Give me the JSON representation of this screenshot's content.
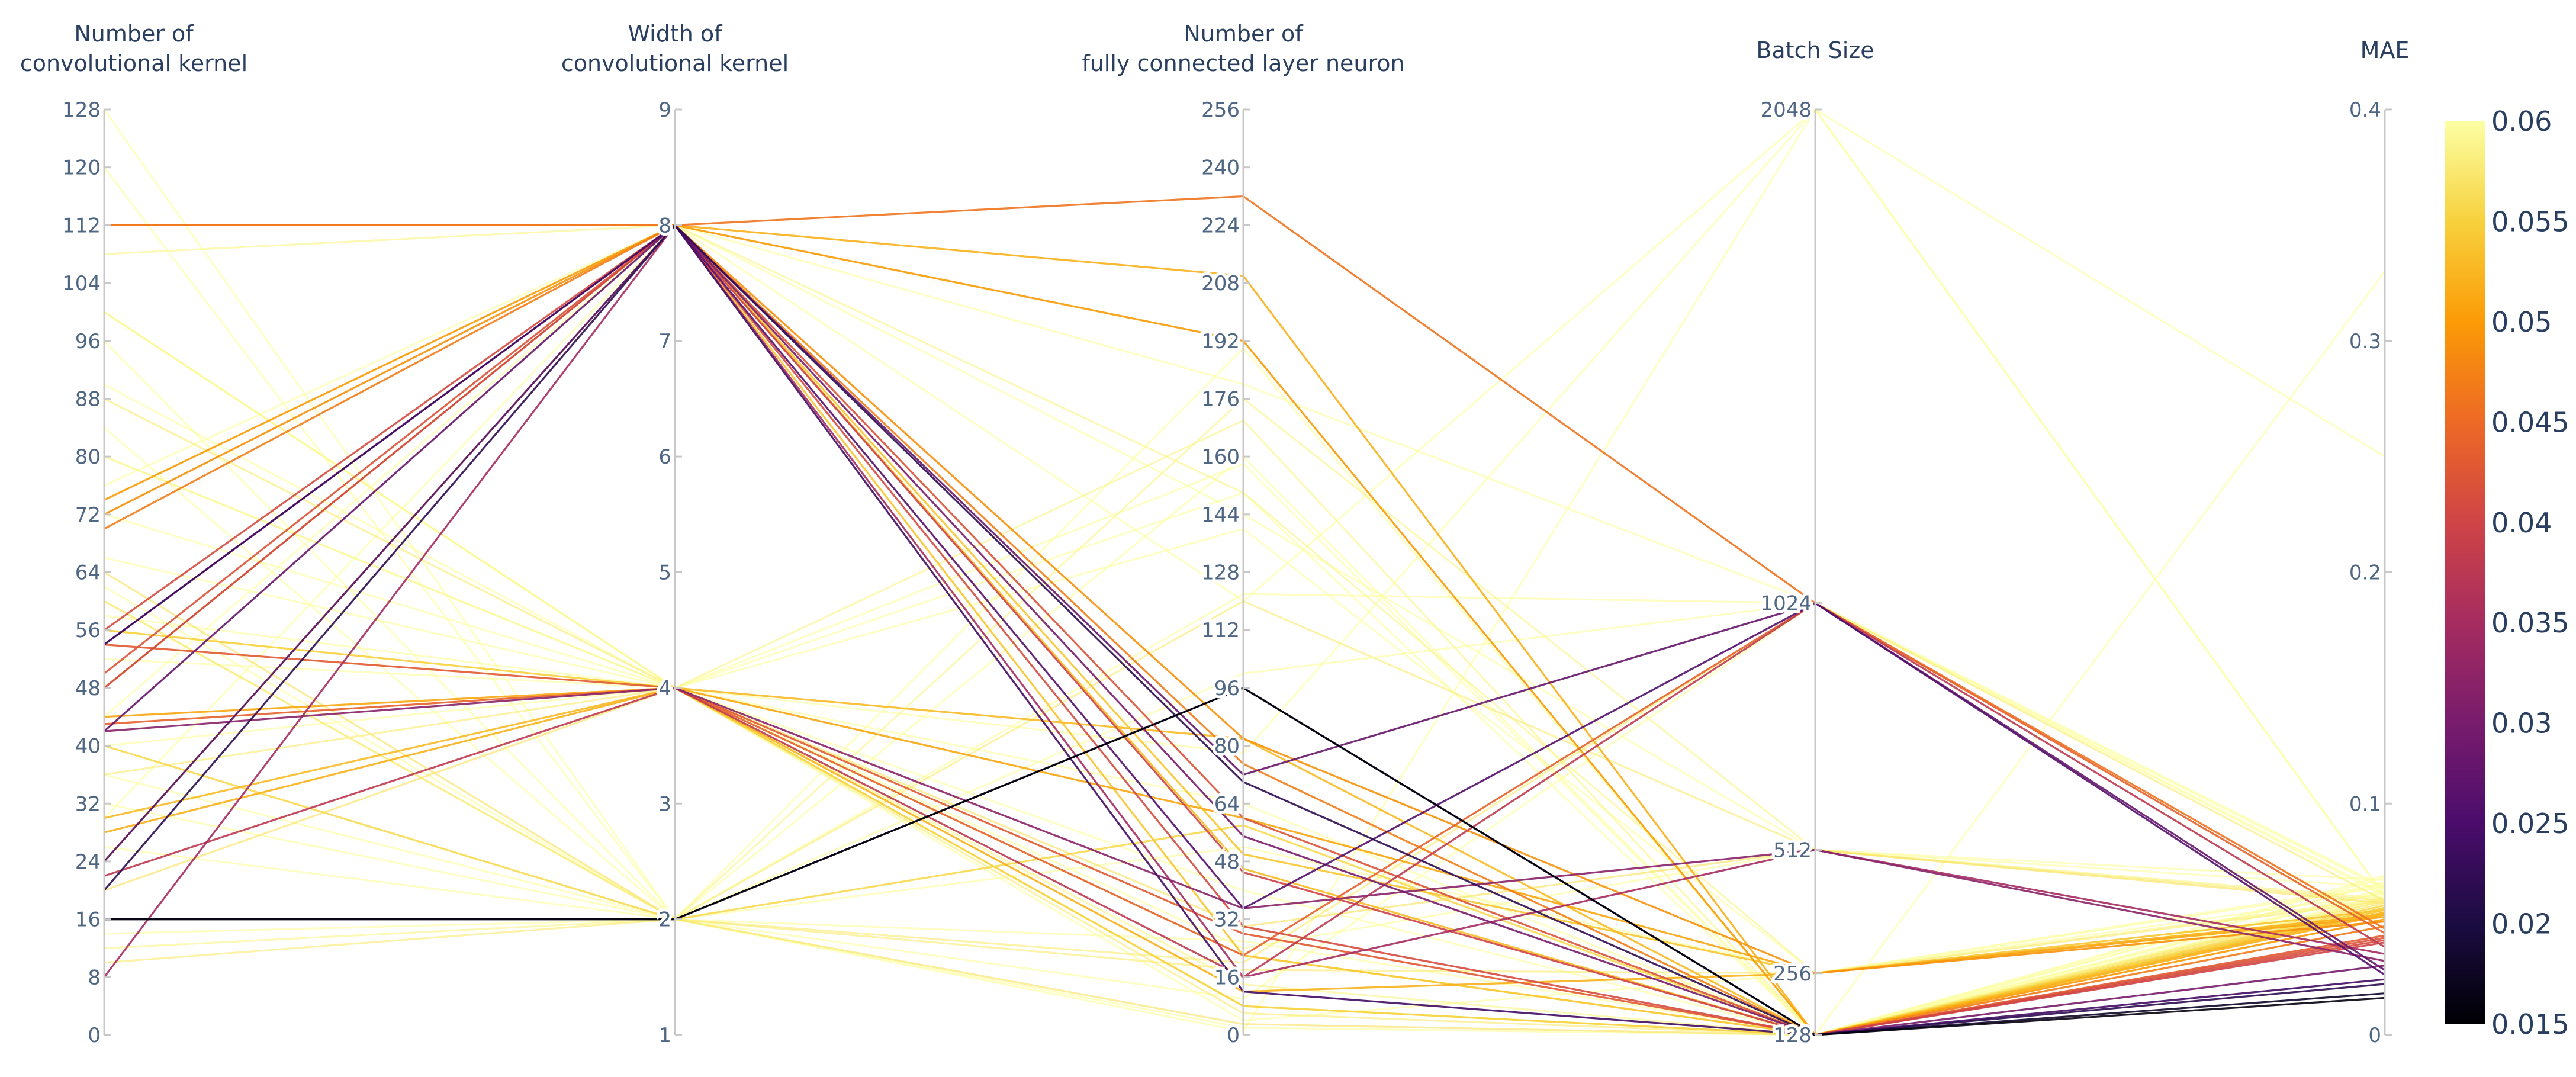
{
  "chart_data": {
    "type": "parallel_coordinates",
    "title": "",
    "axes": [
      {
        "key": "kernels",
        "label_lines": [
          "Number of",
          "convolutional kernel"
        ],
        "range": [
          0,
          128
        ],
        "ticks": [
          "0",
          "8",
          "16",
          "24",
          "32",
          "40",
          "48",
          "56",
          "64",
          "72",
          "80",
          "88",
          "96",
          "104",
          "112",
          "120",
          "128"
        ]
      },
      {
        "key": "width",
        "label_lines": [
          "Width of",
          "convolutional kernel"
        ],
        "range": [
          1,
          9
        ],
        "ticks": [
          "1",
          "2",
          "3",
          "4",
          "5",
          "6",
          "7",
          "8",
          "9"
        ]
      },
      {
        "key": "neurons",
        "label_lines": [
          "Number of",
          "fully connected layer neuron"
        ],
        "range": [
          0,
          256
        ],
        "ticks": [
          "0",
          "16",
          "32",
          "48",
          "64",
          "80",
          "96",
          "112",
          "128",
          "144",
          "160",
          "176",
          "192",
          "208",
          "224",
          "240",
          "256"
        ]
      },
      {
        "key": "batch",
        "label_lines": [
          "Batch Size"
        ],
        "range": [
          128,
          2048
        ],
        "tick_values": [
          128,
          256,
          512,
          1024,
          2048
        ],
        "ticks": [
          "128",
          "256",
          "512",
          "1024",
          "2048"
        ]
      },
      {
        "key": "mae",
        "label_lines": [
          "MAE"
        ],
        "range": [
          0,
          0.4
        ],
        "ticks": [
          "0",
          "0.1",
          "0.2",
          "0.3",
          "0.4"
        ]
      }
    ],
    "colorbar": {
      "range": [
        0.015,
        0.06
      ],
      "colorscale": "inferno",
      "colors": [
        "#000004",
        "#1b0c41",
        "#4a0c6b",
        "#781c6d",
        "#a52c60",
        "#cf4446",
        "#ed6925",
        "#fb9b06",
        "#f7d13d",
        "#fcffa4"
      ],
      "ticks": [
        "0.015",
        "0.02",
        "0.025",
        "0.03",
        "0.035",
        "0.04",
        "0.045",
        "0.05",
        "0.055",
        "0.06"
      ]
    },
    "color_clip_max": 0.06,
    "lines": [
      [
        16,
        2,
        96,
        128,
        0.018
      ],
      [
        16,
        2,
        96,
        128,
        0.016
      ],
      [
        20,
        8,
        70,
        128,
        0.022
      ],
      [
        24,
        8,
        35,
        1024,
        0.026
      ],
      [
        54,
        8,
        12,
        128,
        0.024
      ],
      [
        54,
        8,
        55,
        128,
        0.03
      ],
      [
        42,
        8,
        72,
        1024,
        0.028
      ],
      [
        42,
        4,
        35,
        512,
        0.032
      ],
      [
        8,
        8,
        16,
        512,
        0.035
      ],
      [
        22,
        4,
        16,
        1024,
        0.038
      ],
      [
        48,
        8,
        45,
        128,
        0.04
      ],
      [
        50,
        8,
        60,
        128,
        0.042
      ],
      [
        112,
        8,
        232,
        1024,
        0.046
      ],
      [
        43,
        4,
        22,
        1024,
        0.044
      ],
      [
        56,
        8,
        30,
        128,
        0.041
      ],
      [
        54,
        4,
        28,
        128,
        0.043
      ],
      [
        70,
        8,
        75,
        128,
        0.047
      ],
      [
        72,
        8,
        82,
        256,
        0.049
      ],
      [
        74,
        8,
        192,
        128,
        0.05
      ],
      [
        112,
        8,
        210,
        128,
        0.052
      ],
      [
        44,
        4,
        60,
        256,
        0.051
      ],
      [
        30,
        4,
        82,
        128,
        0.053
      ],
      [
        48,
        8,
        50,
        256,
        0.054
      ],
      [
        28,
        4,
        12,
        256,
        0.052
      ],
      [
        56,
        4,
        8,
        128,
        0.055
      ],
      [
        24,
        8,
        46,
        128,
        0.053
      ],
      [
        48,
        8,
        22,
        128,
        0.054
      ],
      [
        40,
        2,
        58,
        128,
        0.056
      ],
      [
        64,
        2,
        3,
        128,
        0.057
      ],
      [
        36,
        4,
        22,
        128,
        0.058
      ],
      [
        20,
        4,
        30,
        512,
        0.057
      ],
      [
        60,
        2,
        120,
        512,
        0.058
      ],
      [
        80,
        4,
        14,
        128,
        0.059
      ],
      [
        10,
        2,
        18,
        256,
        0.058
      ],
      [
        100,
        4,
        170,
        128,
        0.059
      ],
      [
        88,
        4,
        6,
        128,
        0.058
      ],
      [
        108,
        8,
        150,
        256,
        0.059
      ],
      [
        128,
        2,
        100,
        1024,
        0.06
      ],
      [
        80,
        4,
        78,
        2048,
        0.06
      ],
      [
        96,
        2,
        190,
        128,
        0.06
      ],
      [
        60,
        2,
        20,
        1024,
        0.058
      ],
      [
        12,
        2,
        176,
        512,
        0.059
      ],
      [
        44,
        8,
        120,
        2048,
        0.06
      ],
      [
        32,
        2,
        122,
        1024,
        0.061
      ],
      [
        72,
        4,
        158,
        128,
        0.062
      ],
      [
        66,
        4,
        140,
        256,
        0.061
      ],
      [
        100,
        4,
        4,
        256,
        0.064
      ],
      [
        14,
        2,
        10,
        1024,
        0.063
      ],
      [
        52,
        4,
        40,
        128,
        0.066
      ],
      [
        36,
        2,
        52,
        256,
        0.065
      ],
      [
        84,
        2,
        1,
        2048,
        0.25
      ],
      [
        100,
        4,
        150,
        128,
        0.33
      ],
      [
        120,
        2,
        160,
        128,
        0.068
      ],
      [
        76,
        8,
        144,
        512,
        0.067
      ],
      [
        40,
        4,
        8,
        128,
        0.066
      ],
      [
        62,
        2,
        2,
        128,
        0.062
      ],
      [
        58,
        4,
        64,
        128,
        0.063
      ],
      [
        90,
        4,
        24,
        512,
        0.064
      ],
      [
        30,
        8,
        180,
        1024,
        0.064
      ],
      [
        26,
        2,
        26,
        128,
        0.069
      ]
    ]
  }
}
